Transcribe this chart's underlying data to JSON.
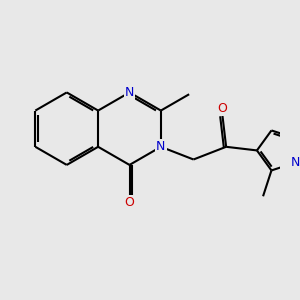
{
  "background_color": "#e8e8e8",
  "bond_color": "#000000",
  "N_color": "#0000cc",
  "O_color": "#cc0000",
  "font_size": 9,
  "lw": 1.5,
  "figsize": [
    3.0,
    3.0
  ],
  "dpi": 100,
  "xlim": [
    0.0,
    6.5
  ],
  "ylim": [
    -1.5,
    4.5
  ]
}
